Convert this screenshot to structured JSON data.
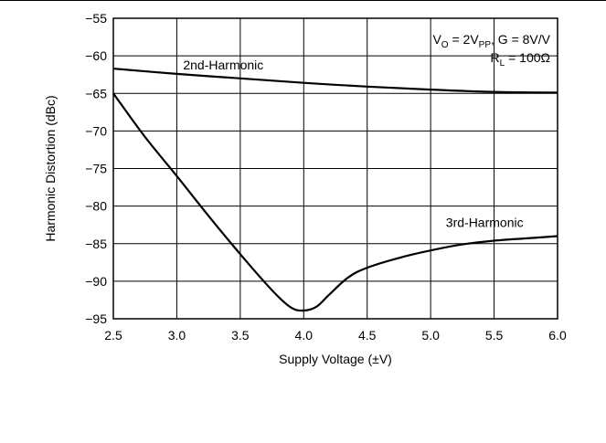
{
  "chart_data": {
    "type": "line",
    "xlabel": "Supply Voltage (±V)",
    "ylabel": "Harmonic Distortion (dBc)",
    "xlim": [
      2.5,
      6.0
    ],
    "ylim": [
      -95,
      -55
    ],
    "x_ticks": [
      "2.5",
      "3.0",
      "3.5",
      "4.0",
      "4.5",
      "5.0",
      "5.5",
      "6.0"
    ],
    "y_ticks": [
      "−55",
      "−60",
      "−65",
      "−70",
      "−75",
      "−80",
      "−85",
      "−90",
      "−95"
    ],
    "grid": true,
    "conditions": {
      "line1": {
        "v": "V",
        "v_sub": "O",
        "mid": " = 2V",
        "mid_sub": "PP",
        "end": ", G = 8V/V"
      },
      "line2": {
        "r": "R",
        "r_sub": "L",
        "end": " = 100Ω"
      }
    },
    "series": [
      {
        "name": "2nd-Harmonic",
        "x": [
          2.5,
          3.0,
          3.5,
          4.0,
          4.5,
          5.0,
          5.5,
          6.0
        ],
        "y": [
          -61.7,
          -62.4,
          -63.0,
          -63.6,
          -64.1,
          -64.5,
          -64.8,
          -64.9
        ]
      },
      {
        "name": "3rd-Harmonic",
        "x": [
          2.5,
          2.75,
          3.0,
          3.25,
          3.5,
          3.75,
          3.9,
          4.0,
          4.1,
          4.2,
          4.35,
          4.5,
          4.75,
          5.0,
          5.25,
          5.5,
          5.75,
          6.0
        ],
        "y": [
          -65.0,
          -70.8,
          -76.0,
          -81.3,
          -86.4,
          -91.2,
          -93.5,
          -93.9,
          -93.4,
          -91.8,
          -89.5,
          -88.2,
          -86.9,
          -85.9,
          -85.1,
          -84.6,
          -84.3,
          -84.0
        ]
      }
    ]
  }
}
